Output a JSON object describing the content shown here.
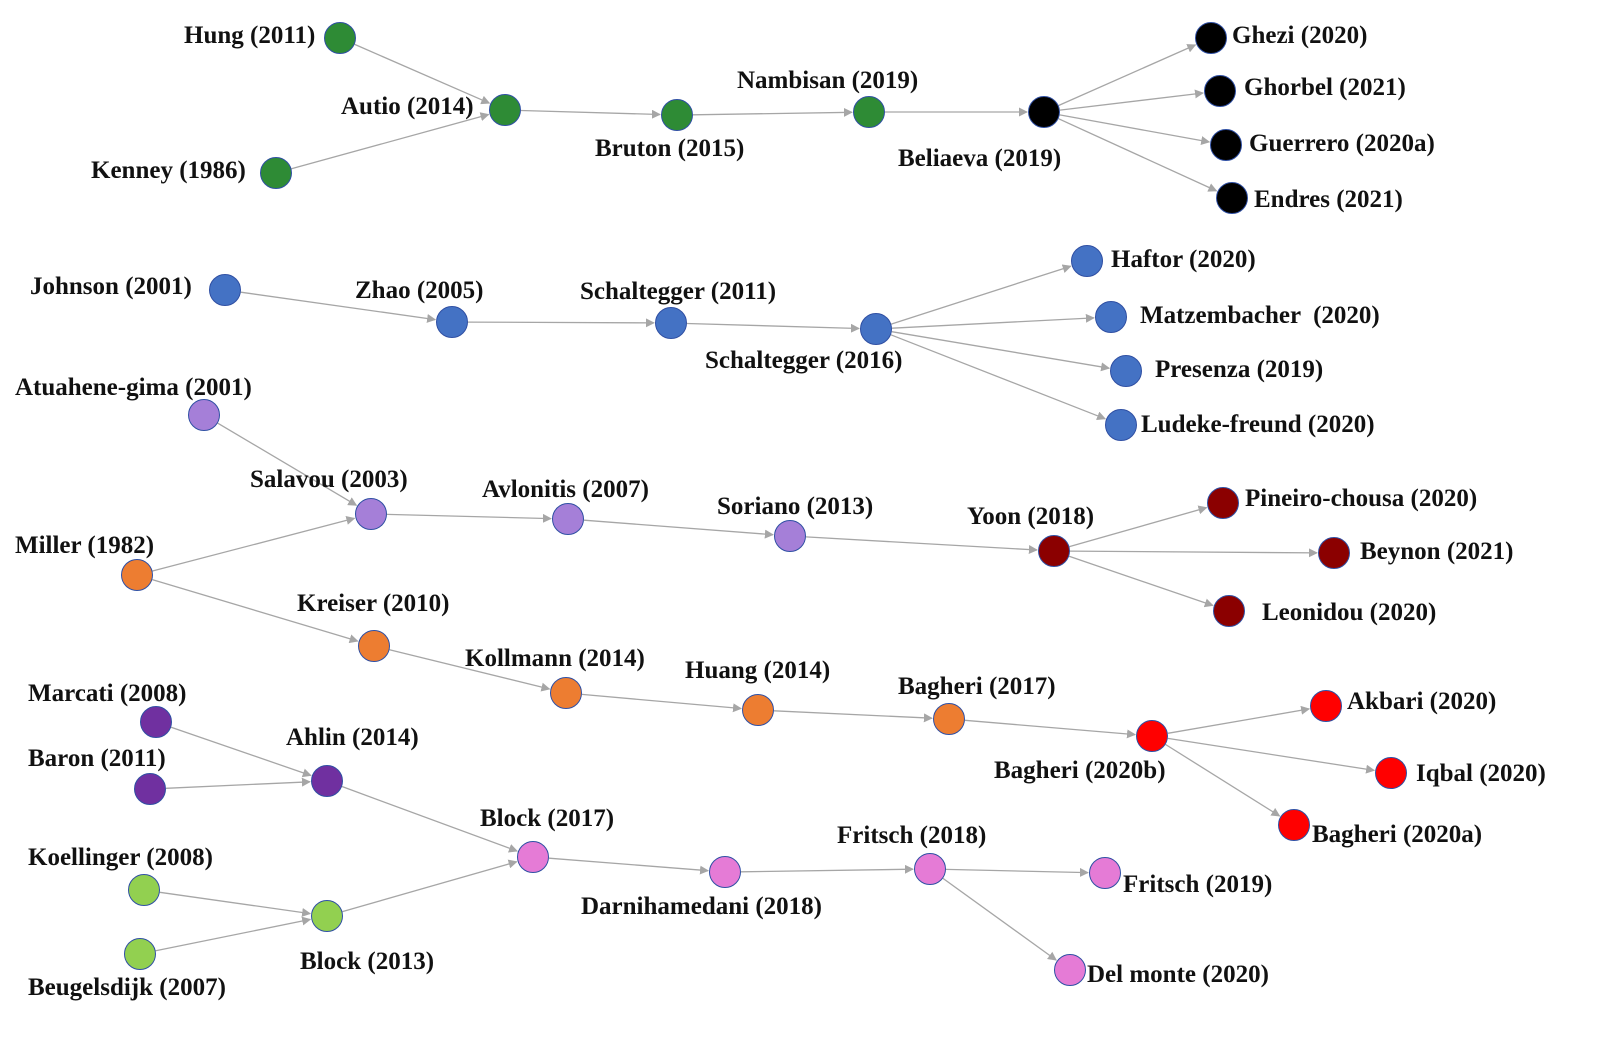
{
  "colors": {
    "green": "#2e8b35",
    "black": "#000000",
    "blue": "#4472c4",
    "lavender": "#a57fd8",
    "orange": "#ed7d31",
    "darkred": "#8b0000",
    "purple": "#7030a0",
    "lightgreen": "#92d050",
    "pink": "#e57bd6",
    "red": "#ff0000",
    "edge": "#a6a6a6",
    "node_border": "#2f4fa3"
  },
  "nodes": [
    {
      "id": "hung2011",
      "label": "Hung (2011)",
      "color": "green"
    },
    {
      "id": "kenney1986",
      "label": "Kenney (1986)",
      "color": "green"
    },
    {
      "id": "autio2014",
      "label": "Autio (2014)",
      "color": "green"
    },
    {
      "id": "bruton2015",
      "label": "Bruton (2015)",
      "color": "green"
    },
    {
      "id": "nambisan2019",
      "label": "Nambisan (2019)",
      "color": "green"
    },
    {
      "id": "beliaeva2019",
      "label": "Beliaeva (2019)",
      "color": "black"
    },
    {
      "id": "ghezi2020",
      "label": "Ghezi (2020)",
      "color": "black"
    },
    {
      "id": "ghorbel2021",
      "label": "Ghorbel (2021)",
      "color": "black"
    },
    {
      "id": "guerrero2020a",
      "label": "Guerrero (2020a)",
      "color": "black"
    },
    {
      "id": "endres2021",
      "label": "Endres (2021)",
      "color": "black"
    },
    {
      "id": "johnson2001",
      "label": "Johnson (2001)",
      "color": "blue"
    },
    {
      "id": "zhao2005",
      "label": "Zhao (2005)",
      "color": "blue"
    },
    {
      "id": "schaltegger2011",
      "label": "Schaltegger (2011)",
      "color": "blue"
    },
    {
      "id": "schaltegger2016",
      "label": "Schaltegger (2016)",
      "color": "blue"
    },
    {
      "id": "haftor2020",
      "label": "Haftor (2020)",
      "color": "blue"
    },
    {
      "id": "matzembacher2020",
      "label": "Matzembacher  (2020)",
      "color": "blue"
    },
    {
      "id": "presenza2019",
      "label": "Presenza (2019)",
      "color": "blue"
    },
    {
      "id": "ludeke2020",
      "label": "Ludeke-freund (2020)",
      "color": "blue"
    },
    {
      "id": "atuahene2001",
      "label": "Atuahene-gima (2001)",
      "color": "lavender"
    },
    {
      "id": "salavou2003",
      "label": "Salavou (2003)",
      "color": "lavender"
    },
    {
      "id": "avlonitis2007",
      "label": "Avlonitis (2007)",
      "color": "lavender"
    },
    {
      "id": "soriano2013",
      "label": "Soriano (2013)",
      "color": "lavender"
    },
    {
      "id": "yoon2018",
      "label": "Yoon (2018)",
      "color": "darkred"
    },
    {
      "id": "pineiro2020",
      "label": "Pineiro-chousa (2020)",
      "color": "darkred"
    },
    {
      "id": "beynon2021",
      "label": "Beynon (2021)",
      "color": "darkred"
    },
    {
      "id": "leonidou2020",
      "label": "Leonidou (2020)",
      "color": "darkred"
    },
    {
      "id": "miller1982",
      "label": "Miller (1982)",
      "color": "orange"
    },
    {
      "id": "kreiser2010",
      "label": "Kreiser (2010)",
      "color": "orange"
    },
    {
      "id": "kollmann2014",
      "label": "Kollmann (2014)",
      "color": "orange"
    },
    {
      "id": "huang2014",
      "label": "Huang (2014)",
      "color": "orange"
    },
    {
      "id": "bagheri2017",
      "label": "Bagheri (2017)",
      "color": "orange"
    },
    {
      "id": "bagheri2020b",
      "label": "Bagheri (2020b)",
      "color": "red"
    },
    {
      "id": "akbari2020",
      "label": "Akbari (2020)",
      "color": "red"
    },
    {
      "id": "iqbal2020",
      "label": "Iqbal (2020)",
      "color": "red"
    },
    {
      "id": "bagheri2020a",
      "label": "Bagheri (2020a)",
      "color": "red"
    },
    {
      "id": "marcati2008",
      "label": "Marcati (2008)",
      "color": "purple"
    },
    {
      "id": "baron2011",
      "label": "Baron (2011)",
      "color": "purple"
    },
    {
      "id": "ahlin2014",
      "label": "Ahlin (2014)",
      "color": "purple"
    },
    {
      "id": "koellinger2008",
      "label": "Koellinger (2008)",
      "color": "lightgreen"
    },
    {
      "id": "beugelsdijk2007",
      "label": "Beugelsdijk (2007)",
      "color": "lightgreen"
    },
    {
      "id": "block2013",
      "label": "Block (2013)",
      "color": "lightgreen"
    },
    {
      "id": "block2017",
      "label": "Block (2017)",
      "color": "pink"
    },
    {
      "id": "darnihamedani2018",
      "label": "Darnihamedani (2018)",
      "color": "pink"
    },
    {
      "id": "fritsch2018",
      "label": "Fritsch (2018)",
      "color": "pink"
    },
    {
      "id": "fritsch2019",
      "label": "Fritsch (2019)",
      "color": "pink"
    },
    {
      "id": "delmonte2020",
      "label": "Del monte (2020)",
      "color": "pink"
    }
  ],
  "edges": [
    [
      "hung2011",
      "autio2014"
    ],
    [
      "kenney1986",
      "autio2014"
    ],
    [
      "autio2014",
      "bruton2015"
    ],
    [
      "bruton2015",
      "nambisan2019"
    ],
    [
      "nambisan2019",
      "beliaeva2019"
    ],
    [
      "beliaeva2019",
      "ghezi2020"
    ],
    [
      "beliaeva2019",
      "ghorbel2021"
    ],
    [
      "beliaeva2019",
      "guerrero2020a"
    ],
    [
      "beliaeva2019",
      "endres2021"
    ],
    [
      "johnson2001",
      "zhao2005"
    ],
    [
      "zhao2005",
      "schaltegger2011"
    ],
    [
      "schaltegger2011",
      "schaltegger2016"
    ],
    [
      "schaltegger2016",
      "haftor2020"
    ],
    [
      "schaltegger2016",
      "matzembacher2020"
    ],
    [
      "schaltegger2016",
      "presenza2019"
    ],
    [
      "schaltegger2016",
      "ludeke2020"
    ],
    [
      "atuahene2001",
      "salavou2003"
    ],
    [
      "miller1982",
      "salavou2003"
    ],
    [
      "salavou2003",
      "avlonitis2007"
    ],
    [
      "avlonitis2007",
      "soriano2013"
    ],
    [
      "soriano2013",
      "yoon2018"
    ],
    [
      "yoon2018",
      "pineiro2020"
    ],
    [
      "yoon2018",
      "beynon2021"
    ],
    [
      "yoon2018",
      "leonidou2020"
    ],
    [
      "miller1982",
      "kreiser2010"
    ],
    [
      "kreiser2010",
      "kollmann2014"
    ],
    [
      "kollmann2014",
      "huang2014"
    ],
    [
      "huang2014",
      "bagheri2017"
    ],
    [
      "bagheri2017",
      "bagheri2020b"
    ],
    [
      "bagheri2020b",
      "akbari2020"
    ],
    [
      "bagheri2020b",
      "iqbal2020"
    ],
    [
      "bagheri2020b",
      "bagheri2020a"
    ],
    [
      "marcati2008",
      "ahlin2014"
    ],
    [
      "baron2011",
      "ahlin2014"
    ],
    [
      "ahlin2014",
      "block2017"
    ],
    [
      "koellinger2008",
      "block2013"
    ],
    [
      "beugelsdijk2007",
      "block2013"
    ],
    [
      "block2013",
      "block2017"
    ],
    [
      "block2017",
      "darnihamedani2018"
    ],
    [
      "darnihamedani2018",
      "fritsch2018"
    ],
    [
      "fritsch2018",
      "fritsch2019"
    ],
    [
      "fritsch2018",
      "delmonte2020"
    ]
  ]
}
